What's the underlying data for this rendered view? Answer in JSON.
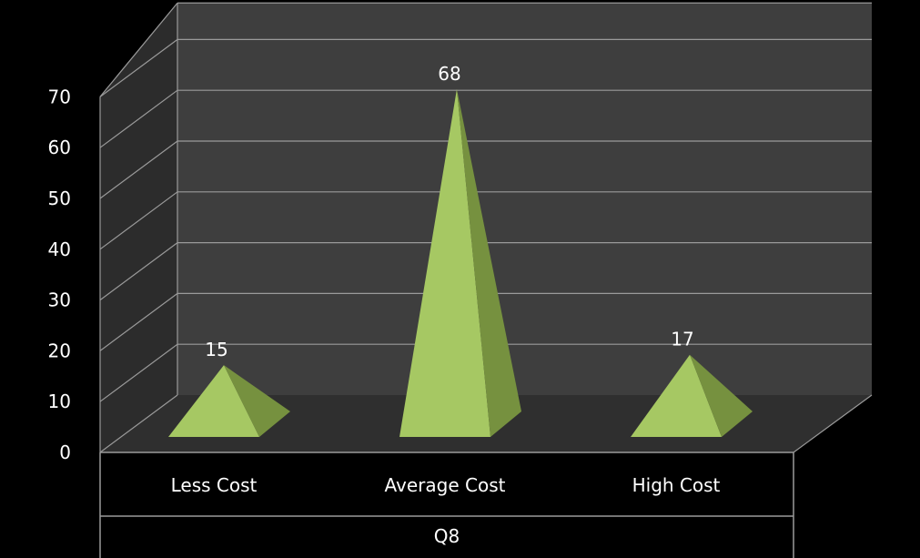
{
  "chart_data": {
    "type": "bar",
    "shape": "pyramid-3d",
    "categories": [
      "Less Cost",
      "Average Cost",
      "High Cost"
    ],
    "group_label": "Q8",
    "series": [
      {
        "values": [
          15,
          68,
          17
        ]
      }
    ],
    "data_labels": [
      "15",
      "68",
      "17"
    ],
    "ylim": [
      0,
      70
    ],
    "y_ticks": [
      0,
      10,
      20,
      30,
      40,
      50,
      60,
      70
    ],
    "y_tick_labels": [
      "0",
      "10",
      "20",
      "30",
      "40",
      "50",
      "60",
      "70"
    ],
    "grid": true,
    "legend": "none",
    "colors": {
      "background": "#000000",
      "back_wall": "#3e3e3e",
      "side_wall": "#2c2c2c",
      "floor": "#2f2f2f",
      "gridline": "#9a9a9a",
      "bar_front": "#a6c863",
      "bar_side": "#76913f",
      "text": "#ffffff"
    }
  }
}
